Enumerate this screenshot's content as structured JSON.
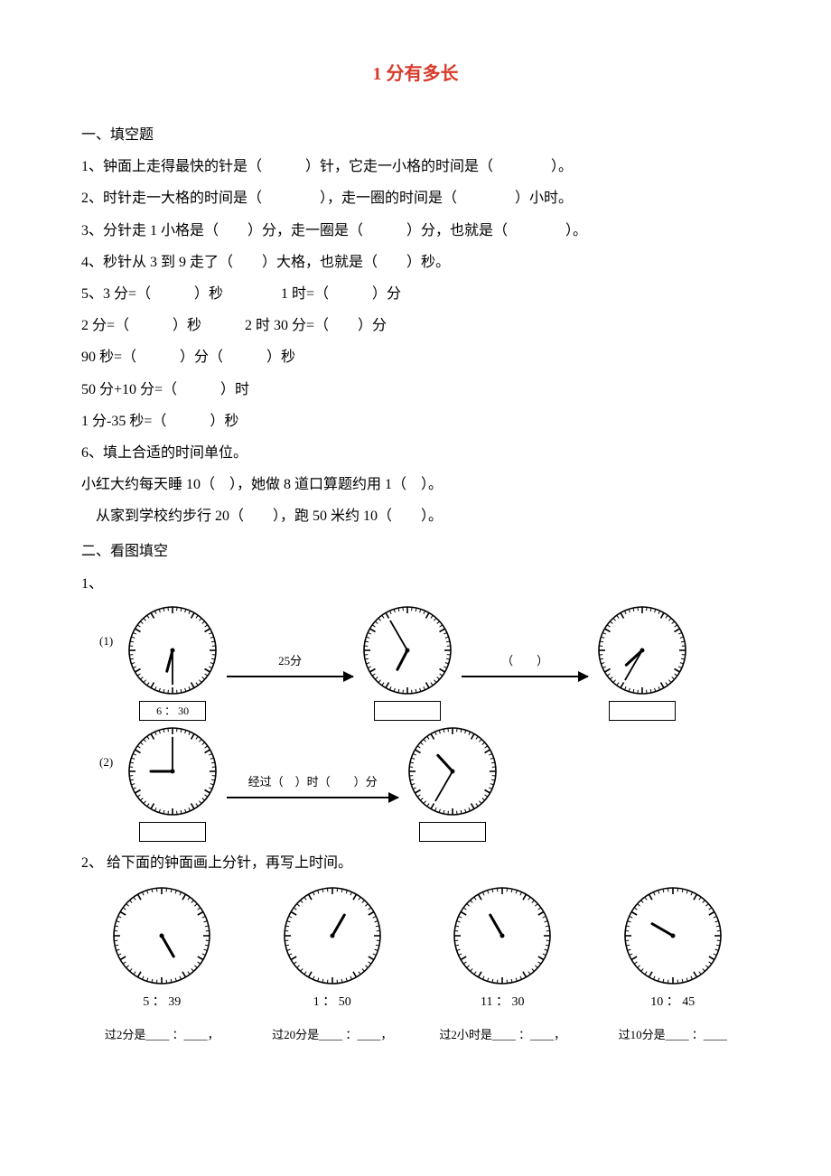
{
  "title": "1 分有多长",
  "section1": {
    "heading": "一、填空题",
    "q1": "1、钟面上走得最快的针是（　　　）针，它走一小格的时间是（　　　　）。",
    "q2": "2、时针走一大格的时间是（　　　　），走一圈的时间是（　　　　）小时。",
    "q3": "3、分针走 1 小格是（　　）分，走一圈是（　　　）分，也就是（　　　　）。",
    "q4": "4、秒针从 3 到 9 走了（　　）大格，也就是（　　）秒。",
    "q5l1": "5、3 分=（　　　）秒　　　　1 时=（　　　）分",
    "q5l2": "2 分=（　　　）秒　　　2 时 30 分=（　　）分",
    "q5l3": "90 秒=（　　　）分（　　　）秒",
    "q5l4": "50 分+10 分=（　　　）时",
    "q5l5": "1 分-35 秒=（　　　）秒",
    "q6": "6、填上合适的时间单位。",
    "q6l1": "小红大约每天睡 10（　），她做 8 道口算题约用 1（　）。",
    "q6l2": "　从家到学校约步行 20（　　），跑 50 米约 10（　　）。"
  },
  "section2": {
    "heading": "二、看图填空",
    "q1label": "1、",
    "row1": {
      "tag": "(1)",
      "clock_a": {
        "hour": 6,
        "minute": 30,
        "box": "6 ： 30"
      },
      "arrow_ab": "25分",
      "clock_b": {
        "hour": 6,
        "minute": 55,
        "box": ""
      },
      "arrow_bc": "（　　）",
      "clock_c": {
        "hour": 7,
        "minute": 35,
        "box": ""
      }
    },
    "row2": {
      "tag": "(2)",
      "clock_a": {
        "hour": 9,
        "minute": 0,
        "box": ""
      },
      "arrow_ab": "经过（　）时（　　）分",
      "clock_b": {
        "hour": 10,
        "minute": 35,
        "box": ""
      }
    },
    "q2label": "2、 给下面的钟面画上分针，再写上时间。",
    "q2items": [
      {
        "hour": 5,
        "minute": null,
        "time": "5 ： 39",
        "caption_pre": "过2分是",
        "caption_post": "，"
      },
      {
        "hour": 1,
        "minute": null,
        "time": "1 ： 50",
        "caption_pre": "过20分是",
        "caption_post": "，"
      },
      {
        "hour": 11,
        "minute": null,
        "time": "11 ： 30",
        "caption_pre": "过2小时是",
        "caption_post": "，"
      },
      {
        "hour": 10,
        "minute": null,
        "time": "10 ： 45",
        "caption_pre": "过10分是",
        "caption_post": ""
      }
    ]
  },
  "clock_style": {
    "size": 100,
    "stroke": "#000",
    "stroke_width": 1.6,
    "tick_len_major": 7,
    "tick_len_minor": 4
  }
}
